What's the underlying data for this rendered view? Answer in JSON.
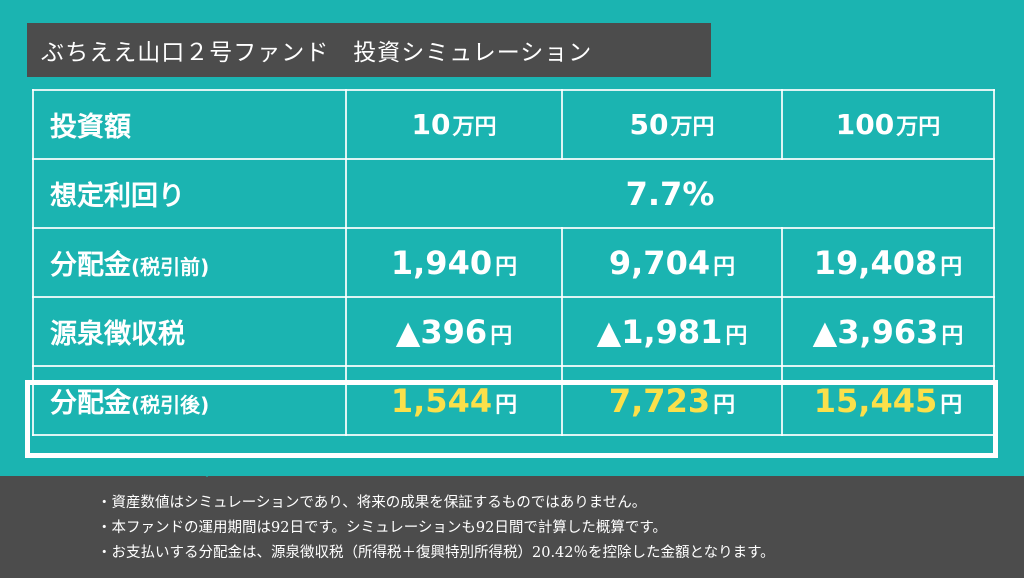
{
  "title": "ぶちええ山口２号ファンド　投資シミュレーション",
  "rows": {
    "investment": {
      "label": "投資額",
      "cells": [
        {
          "num": "10",
          "unit": "万円"
        },
        {
          "num": "50",
          "unit": "万円"
        },
        {
          "num": "100",
          "unit": "万円"
        }
      ]
    },
    "yield": {
      "label": "想定利回り",
      "value": "7.7%"
    },
    "pre_tax": {
      "label": "分配金",
      "label_small": "(税引前)",
      "cells": [
        {
          "num": "1,940",
          "unit": "円"
        },
        {
          "num": "9,704",
          "unit": "円"
        },
        {
          "num": "19,408",
          "unit": "円"
        }
      ]
    },
    "withholding": {
      "label": "源泉徴収税",
      "cells": [
        {
          "num": "▲396",
          "unit": "円"
        },
        {
          "num": "▲1,981",
          "unit": "円"
        },
        {
          "num": "▲3,963",
          "unit": "円"
        }
      ]
    },
    "after_tax": {
      "label": "分配金",
      "label_small": "(税引後)",
      "cells": [
        {
          "num": "1,544",
          "unit": "円"
        },
        {
          "num": "7,723",
          "unit": "円"
        },
        {
          "num": "15,445",
          "unit": "円"
        }
      ]
    }
  },
  "notes": [
    "・資産数値はシミュレーションであり、将来の成果を保証するものではありません。",
    "・本ファンドの運用期間は92日です。シミュレーションも92日間で計算した概算です。",
    "・お支払いする分配金は、源泉徴収税（所得税＋復興特別所得税）20.42％を控除した金額となります。"
  ],
  "colors": {
    "background": "#1bb4b1",
    "dark_panel": "#4c4c4c",
    "highlight_value": "#fbe04a"
  }
}
